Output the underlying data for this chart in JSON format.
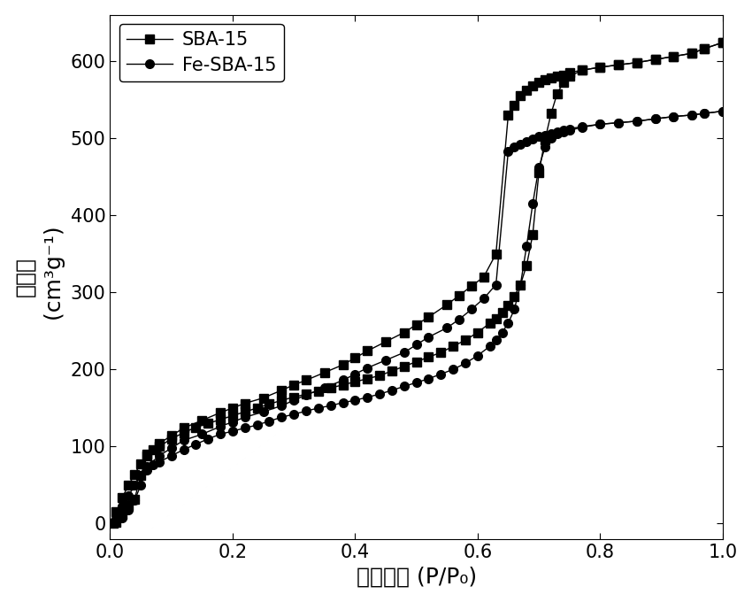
{
  "sba15_ads_x": [
    0.005,
    0.01,
    0.02,
    0.03,
    0.04,
    0.05,
    0.06,
    0.07,
    0.08,
    0.1,
    0.12,
    0.14,
    0.16,
    0.18,
    0.2,
    0.22,
    0.24,
    0.26,
    0.28,
    0.3,
    0.32,
    0.34,
    0.36,
    0.38,
    0.4,
    0.42,
    0.44,
    0.46,
    0.48,
    0.5,
    0.52,
    0.54,
    0.56,
    0.58,
    0.6,
    0.62,
    0.63,
    0.64,
    0.65,
    0.66,
    0.67,
    0.68,
    0.69,
    0.7,
    0.71,
    0.72,
    0.73,
    0.74,
    0.75,
    0.77,
    0.8,
    0.83,
    0.86,
    0.89,
    0.92,
    0.95,
    0.97,
    1.0
  ],
  "sba15_ads_y": [
    0,
    2,
    12,
    24,
    32,
    62,
    88,
    96,
    100,
    110,
    118,
    125,
    130,
    135,
    140,
    145,
    150,
    155,
    160,
    164,
    168,
    172,
    176,
    180,
    184,
    188,
    192,
    198,
    204,
    210,
    216,
    222,
    230,
    238,
    248,
    260,
    266,
    274,
    283,
    295,
    310,
    335,
    375,
    455,
    498,
    532,
    558,
    572,
    580,
    588,
    592,
    595,
    598,
    602,
    606,
    610,
    616,
    624
  ],
  "sba15_des_x": [
    1.0,
    0.97,
    0.95,
    0.92,
    0.89,
    0.86,
    0.83,
    0.8,
    0.77,
    0.75,
    0.74,
    0.73,
    0.72,
    0.71,
    0.7,
    0.69,
    0.68,
    0.67,
    0.66,
    0.65,
    0.63,
    0.61,
    0.59,
    0.57,
    0.55,
    0.52,
    0.5,
    0.48,
    0.45,
    0.42,
    0.4,
    0.38,
    0.35,
    0.32,
    0.3,
    0.28,
    0.25,
    0.22,
    0.2,
    0.18,
    0.15,
    0.12,
    0.1,
    0.08,
    0.06,
    0.05,
    0.04,
    0.03,
    0.02,
    0.01
  ],
  "sba15_des_y": [
    624,
    616,
    610,
    606,
    602,
    598,
    595,
    592,
    588,
    585,
    582,
    580,
    578,
    576,
    572,
    568,
    562,
    555,
    543,
    530,
    350,
    320,
    308,
    296,
    284,
    268,
    258,
    248,
    236,
    224,
    215,
    206,
    196,
    186,
    180,
    173,
    163,
    156,
    150,
    144,
    134,
    124,
    114,
    104,
    90,
    78,
    64,
    50,
    34,
    16
  ],
  "fesba15_ads_x": [
    0.005,
    0.01,
    0.02,
    0.03,
    0.04,
    0.05,
    0.06,
    0.07,
    0.08,
    0.1,
    0.12,
    0.14,
    0.16,
    0.18,
    0.2,
    0.22,
    0.24,
    0.26,
    0.28,
    0.3,
    0.32,
    0.34,
    0.36,
    0.38,
    0.4,
    0.42,
    0.44,
    0.46,
    0.48,
    0.5,
    0.52,
    0.54,
    0.56,
    0.58,
    0.6,
    0.62,
    0.63,
    0.64,
    0.65,
    0.66,
    0.67,
    0.68,
    0.69,
    0.7,
    0.71,
    0.72,
    0.73,
    0.74,
    0.75,
    0.77,
    0.8,
    0.83,
    0.86,
    0.89,
    0.92,
    0.95,
    0.97,
    1.0
  ],
  "fesba15_ads_y": [
    0,
    2,
    8,
    18,
    30,
    50,
    70,
    76,
    80,
    88,
    96,
    103,
    110,
    116,
    120,
    124,
    128,
    133,
    138,
    142,
    146,
    150,
    153,
    157,
    160,
    164,
    168,
    173,
    178,
    183,
    188,
    194,
    200,
    208,
    218,
    230,
    238,
    248,
    260,
    278,
    310,
    360,
    415,
    462,
    488,
    500,
    506,
    508,
    510,
    514,
    518,
    520,
    522,
    525,
    528,
    530,
    532,
    535
  ],
  "fesba15_des_x": [
    1.0,
    0.97,
    0.95,
    0.92,
    0.89,
    0.86,
    0.83,
    0.8,
    0.77,
    0.75,
    0.74,
    0.73,
    0.72,
    0.71,
    0.7,
    0.69,
    0.68,
    0.67,
    0.66,
    0.65,
    0.63,
    0.61,
    0.59,
    0.57,
    0.55,
    0.52,
    0.5,
    0.48,
    0.45,
    0.42,
    0.4,
    0.38,
    0.35,
    0.32,
    0.3,
    0.28,
    0.25,
    0.22,
    0.2,
    0.18,
    0.15,
    0.12,
    0.1,
    0.08,
    0.06,
    0.05,
    0.04,
    0.03,
    0.02,
    0.01
  ],
  "fesba15_des_y": [
    535,
    532,
    530,
    528,
    525,
    522,
    520,
    518,
    515,
    512,
    510,
    508,
    506,
    504,
    502,
    499,
    496,
    492,
    488,
    483,
    310,
    292,
    278,
    265,
    254,
    242,
    232,
    222,
    212,
    202,
    194,
    186,
    176,
    167,
    160,
    153,
    145,
    138,
    132,
    126,
    116,
    108,
    98,
    88,
    74,
    62,
    50,
    36,
    22,
    6
  ],
  "xlabel": "相对压力 (P/P₀)",
  "ylabel_part1": "吸附量",
  "ylabel_part2": " (cm³g⁻¹)",
  "xlim": [
    0.0,
    1.0
  ],
  "ylim": [
    -20,
    660
  ],
  "xticks": [
    0.0,
    0.2,
    0.4,
    0.6,
    0.8,
    1.0
  ],
  "yticks": [
    0,
    100,
    200,
    300,
    400,
    500,
    600
  ],
  "legend_sba15": "SBA-15",
  "legend_fesba15": "Fe-SBA-15",
  "line_color": "#000000",
  "marker_square": "s",
  "marker_circle": "o",
  "marker_size": 7,
  "linewidth": 1.0,
  "font_size_label": 18,
  "font_size_tick": 15,
  "font_size_legend": 15,
  "bg_color": "#ffffff"
}
